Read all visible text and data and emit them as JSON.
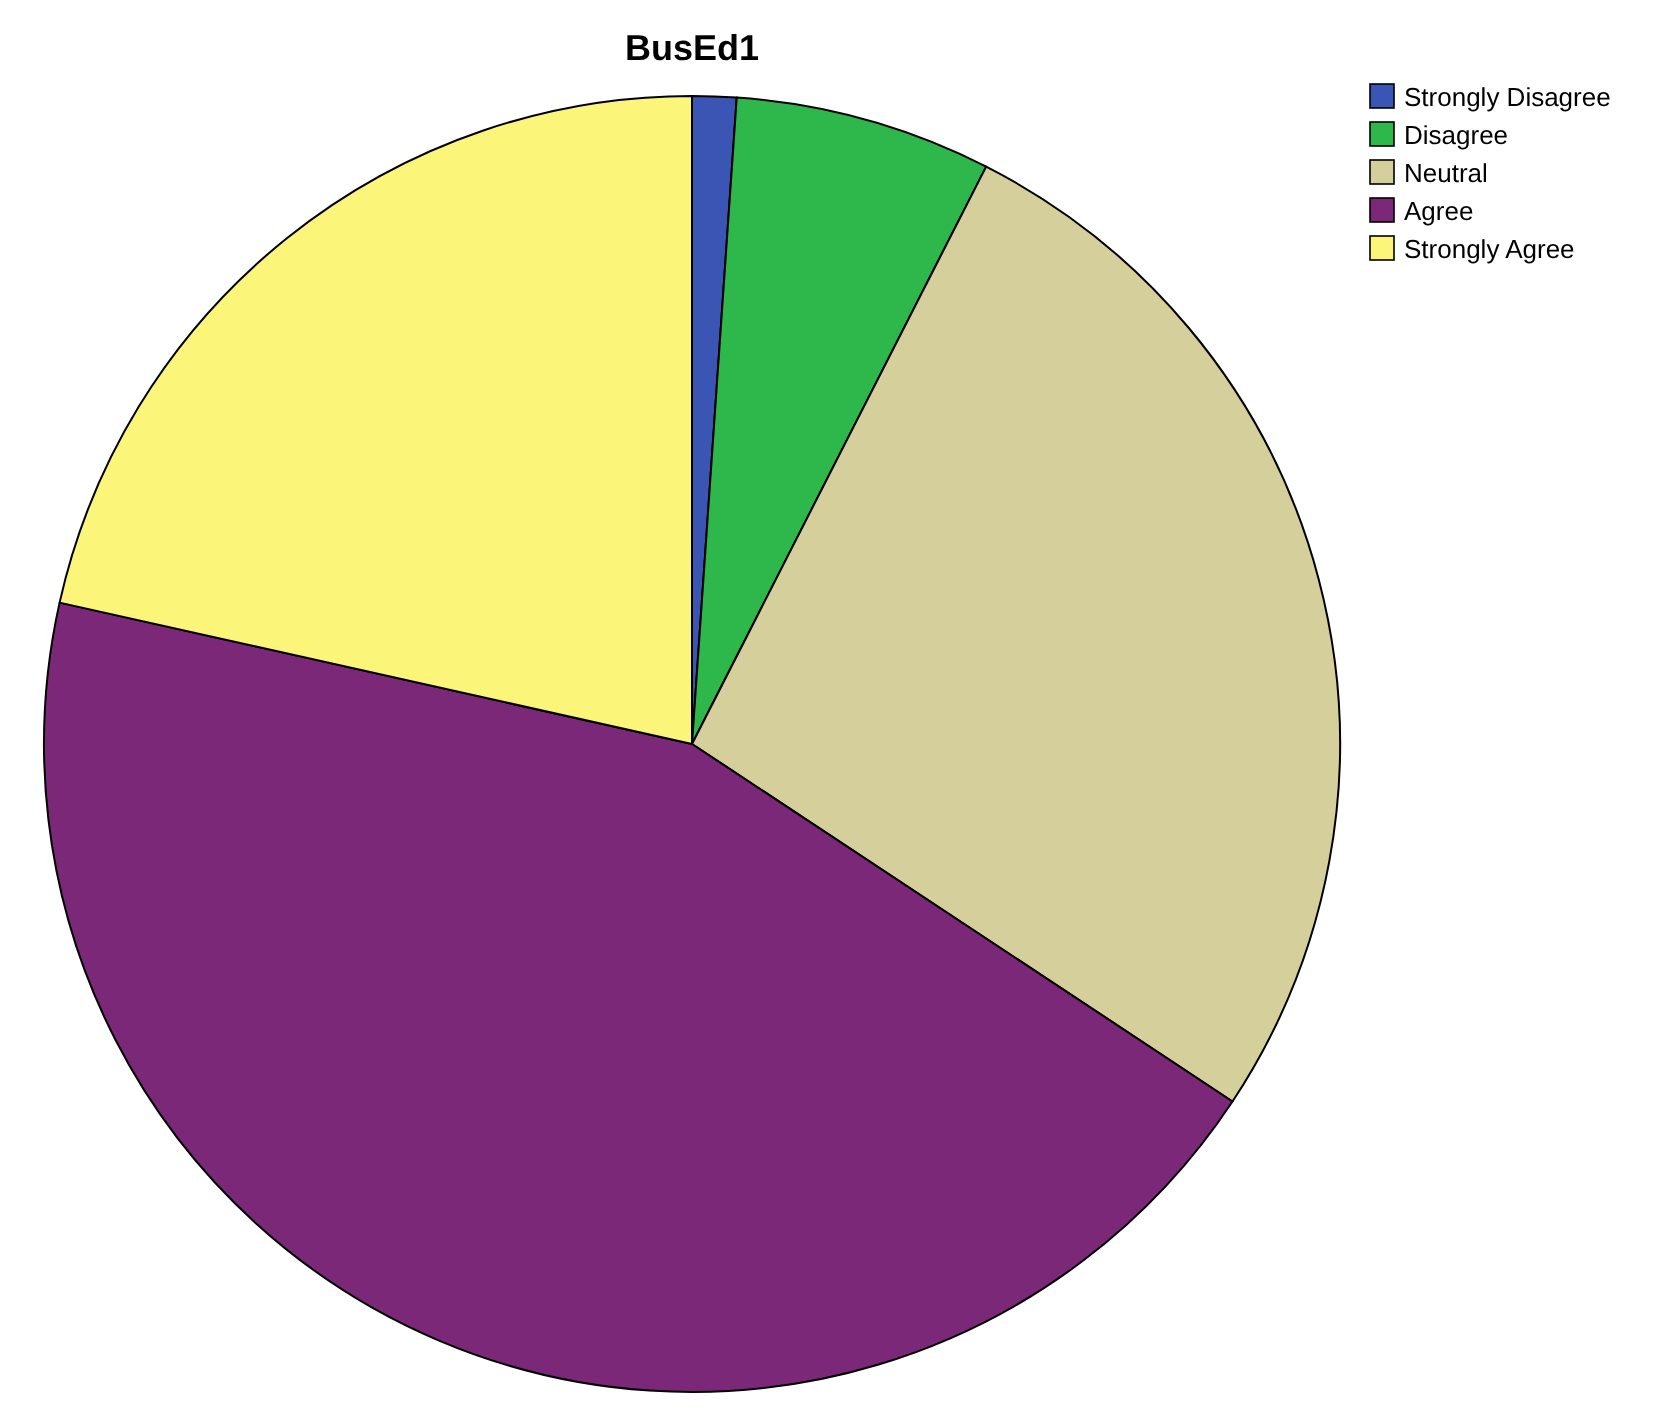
{
  "chart_data": {
    "type": "pie",
    "title": "BusEd1",
    "categories": [
      "Strongly Disagree",
      "Disagree",
      "Neutral",
      "Agree",
      "Strongly Agree"
    ],
    "values": [
      1.1,
      6.4,
      26.8,
      44.2,
      21.5
    ],
    "colors": [
      "#3a55b4",
      "#2eb84b",
      "#d4cf9b",
      "#7b2878",
      "#fbf67a"
    ],
    "legend": "top right"
  }
}
